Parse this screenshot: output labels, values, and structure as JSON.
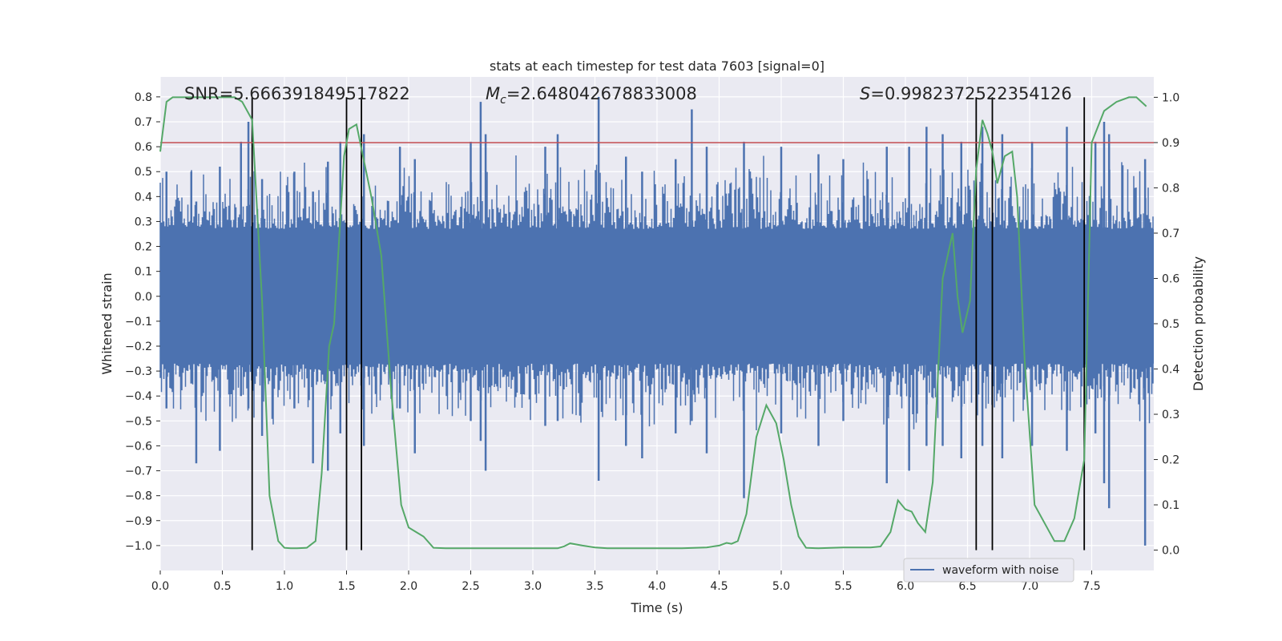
{
  "chart_data": {
    "type": "line",
    "title": "stats at each timestep for test data 7603 [signal=0]",
    "xlabel": "Time (s)",
    "ylabel": "Whitened strain",
    "y2label": "Detection probability",
    "xlim": [
      0.0,
      8.0
    ],
    "ylim": [
      -1.1,
      0.88
    ],
    "y2lim": [
      -0.045,
      1.045
    ],
    "grid": true,
    "legend": {
      "position": "lower-right",
      "entries": [
        "waveform with noise"
      ]
    },
    "xticks": [
      "0.0",
      "0.5",
      "1.0",
      "1.5",
      "2.0",
      "2.5",
      "3.0",
      "3.5",
      "4.0",
      "4.5",
      "5.0",
      "5.5",
      "6.0",
      "6.5",
      "7.0",
      "7.5"
    ],
    "yticks": [
      "0.8",
      "0.7",
      "0.6",
      "0.5",
      "0.4",
      "0.3",
      "0.2",
      "0.1",
      "0.0",
      "−0.1",
      "−0.2",
      "−0.3",
      "−0.4",
      "−0.5",
      "−0.6",
      "−0.7",
      "−0.8",
      "−0.9",
      "−1.0"
    ],
    "y2ticks": [
      "1.0",
      "0.9",
      "0.8",
      "0.7",
      "0.6",
      "0.5",
      "0.4",
      "0.3",
      "0.2",
      "0.1",
      "0.0"
    ],
    "annotations": {
      "snr": "SNR=5.666391849517822",
      "mc": "M_c=2.648042678833008",
      "s": "S=0.9982372522354126"
    },
    "threshold": {
      "probability": 0.9,
      "color": "#c44e52"
    },
    "vlines": [
      0.74,
      1.5,
      1.62,
      6.57,
      6.7,
      7.44
    ],
    "waveform": {
      "name": "waveform with noise",
      "color": "#4c72b0",
      "core_amplitude": 0.27,
      "spikes": [
        {
          "t": 0.05,
          "hi": 0.5,
          "lo": -0.45
        },
        {
          "t": 0.25,
          "hi": 0.5,
          "lo": -0.35
        },
        {
          "t": 0.29,
          "hi": 0.38,
          "lo": -0.67
        },
        {
          "t": 0.48,
          "hi": 0.52,
          "lo": -0.62
        },
        {
          "t": 0.65,
          "hi": 0.62,
          "lo": -0.4
        },
        {
          "t": 0.71,
          "hi": 0.7,
          "lo": -0.45
        },
        {
          "t": 0.82,
          "hi": 0.47,
          "lo": -0.56
        },
        {
          "t": 1.08,
          "hi": 0.5,
          "lo": -0.45
        },
        {
          "t": 1.23,
          "hi": 0.42,
          "lo": -0.67
        },
        {
          "t": 1.35,
          "hi": 0.54,
          "lo": -0.7
        },
        {
          "t": 1.45,
          "hi": 0.62,
          "lo": -0.55
        },
        {
          "t": 1.64,
          "hi": 0.65,
          "lo": -0.6
        },
        {
          "t": 1.93,
          "hi": 0.6,
          "lo": -0.45
        },
        {
          "t": 2.05,
          "hi": 0.55,
          "lo": -0.63
        },
        {
          "t": 2.5,
          "hi": 0.62,
          "lo": -0.5
        },
        {
          "t": 2.58,
          "hi": 0.78,
          "lo": -0.58
        },
        {
          "t": 2.62,
          "hi": 0.65,
          "lo": -0.7
        },
        {
          "t": 3.1,
          "hi": 0.6,
          "lo": -0.52
        },
        {
          "t": 3.2,
          "hi": 0.65,
          "lo": -0.5
        },
        {
          "t": 3.53,
          "hi": 0.8,
          "lo": -0.74
        },
        {
          "t": 3.75,
          "hi": 0.56,
          "lo": -0.6
        },
        {
          "t": 3.88,
          "hi": 0.5,
          "lo": -0.65
        },
        {
          "t": 4.15,
          "hi": 0.55,
          "lo": -0.55
        },
        {
          "t": 4.28,
          "hi": 0.75,
          "lo": -0.5
        },
        {
          "t": 4.4,
          "hi": 0.6,
          "lo": -0.63
        },
        {
          "t": 4.7,
          "hi": 0.62,
          "lo": -0.81
        },
        {
          "t": 5.0,
          "hi": 0.6,
          "lo": -0.55
        },
        {
          "t": 5.3,
          "hi": 0.57,
          "lo": -0.6
        },
        {
          "t": 5.5,
          "hi": 0.55,
          "lo": -0.5
        },
        {
          "t": 5.85,
          "hi": 0.6,
          "lo": -0.75
        },
        {
          "t": 6.03,
          "hi": 0.6,
          "lo": -0.7
        },
        {
          "t": 6.17,
          "hi": 0.68,
          "lo": -0.6
        },
        {
          "t": 6.3,
          "hi": 0.65,
          "lo": -0.6
        },
        {
          "t": 6.45,
          "hi": 0.62,
          "lo": -0.65
        },
        {
          "t": 6.62,
          "hi": 0.68,
          "lo": -0.6
        },
        {
          "t": 6.78,
          "hi": 0.65,
          "lo": -0.65
        },
        {
          "t": 7.02,
          "hi": 0.62,
          "lo": -0.6
        },
        {
          "t": 7.3,
          "hi": 0.68,
          "lo": -0.62
        },
        {
          "t": 7.53,
          "hi": 0.62,
          "lo": -0.55
        },
        {
          "t": 7.6,
          "hi": 0.7,
          "lo": -0.75
        },
        {
          "t": 7.64,
          "hi": 0.65,
          "lo": -0.85
        },
        {
          "t": 7.93,
          "hi": 0.55,
          "lo": -1.0
        }
      ]
    },
    "probability": {
      "name": "detection probability",
      "color": "#55a868",
      "t": [
        0.0,
        0.05,
        0.1,
        0.2,
        0.3,
        0.4,
        0.5,
        0.6,
        0.66,
        0.74,
        0.82,
        0.88,
        0.95,
        1.0,
        1.05,
        1.1,
        1.18,
        1.25,
        1.3,
        1.36,
        1.4,
        1.48,
        1.52,
        1.58,
        1.64,
        1.7,
        1.78,
        1.86,
        1.94,
        2.0,
        2.06,
        2.12,
        2.2,
        2.3,
        2.5,
        2.7,
        2.9,
        3.1,
        3.2,
        3.25,
        3.3,
        3.4,
        3.5,
        3.6,
        3.8,
        4.0,
        4.2,
        4.4,
        4.5,
        4.56,
        4.6,
        4.65,
        4.72,
        4.8,
        4.88,
        4.96,
        5.02,
        5.08,
        5.14,
        5.2,
        5.3,
        5.5,
        5.6,
        5.72,
        5.8,
        5.88,
        5.94,
        6.0,
        6.05,
        6.1,
        6.16,
        6.22,
        6.3,
        6.38,
        6.42,
        6.46,
        6.52,
        6.57,
        6.62,
        6.66,
        6.7,
        6.74,
        6.8,
        6.86,
        6.9,
        6.96,
        7.04,
        7.12,
        7.2,
        7.28,
        7.36,
        7.44,
        7.5,
        7.6,
        7.7,
        7.8,
        7.86,
        7.94
      ],
      "p": [
        0.88,
        0.99,
        1.0,
        1.0,
        1.0,
        1.0,
        1.0,
        1.0,
        0.99,
        0.95,
        0.55,
        0.12,
        0.02,
        0.005,
        0.004,
        0.004,
        0.005,
        0.02,
        0.17,
        0.45,
        0.5,
        0.87,
        0.93,
        0.94,
        0.86,
        0.78,
        0.65,
        0.35,
        0.1,
        0.05,
        0.04,
        0.03,
        0.005,
        0.004,
        0.004,
        0.004,
        0.004,
        0.004,
        0.004,
        0.008,
        0.015,
        0.01,
        0.006,
        0.004,
        0.004,
        0.004,
        0.004,
        0.006,
        0.01,
        0.016,
        0.014,
        0.02,
        0.08,
        0.25,
        0.32,
        0.28,
        0.2,
        0.1,
        0.03,
        0.005,
        0.004,
        0.006,
        0.006,
        0.006,
        0.008,
        0.04,
        0.11,
        0.09,
        0.085,
        0.06,
        0.04,
        0.15,
        0.6,
        0.7,
        0.56,
        0.48,
        0.55,
        0.84,
        0.95,
        0.92,
        0.88,
        0.81,
        0.87,
        0.88,
        0.78,
        0.42,
        0.1,
        0.06,
        0.02,
        0.02,
        0.07,
        0.2,
        0.9,
        0.97,
        0.99,
        1.0,
        1.0,
        0.98
      ]
    }
  }
}
